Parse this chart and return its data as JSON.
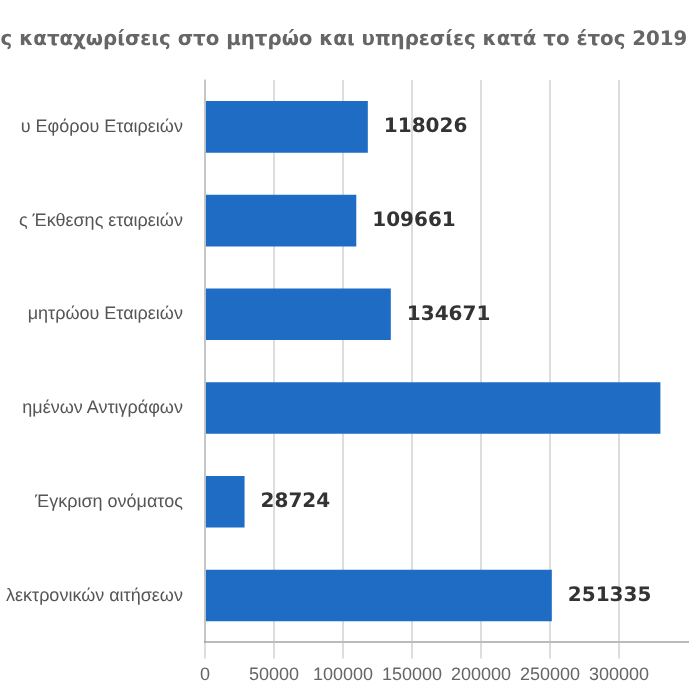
{
  "chart_data": {
    "type": "bar",
    "orientation": "horizontal",
    "title": "ς καταχωρίσεις στο μητρώο και υπηρεσίες κατά το έτος 2019",
    "categories": [
      "υ Εφόρου Εταιρειών",
      "ς Έκθεσης εταιρειών",
      "μητρώου Εταιρειών",
      "ημένων Αντιγράφων",
      "Έγκριση ονόματος",
      "λεκτρονικών αιτήσεων"
    ],
    "values": [
      118026,
      109661,
      134671,
      330000,
      28724,
      251335
    ],
    "value_labels": [
      "118026",
      "109661",
      "134671",
      null,
      "28724",
      "251335"
    ],
    "color": "#1f6cc4",
    "xlim": [
      0,
      350000
    ],
    "xticks": [
      0,
      50000,
      100000,
      150000,
      200000,
      250000,
      300000
    ],
    "grid": "x",
    "legend": false
  }
}
